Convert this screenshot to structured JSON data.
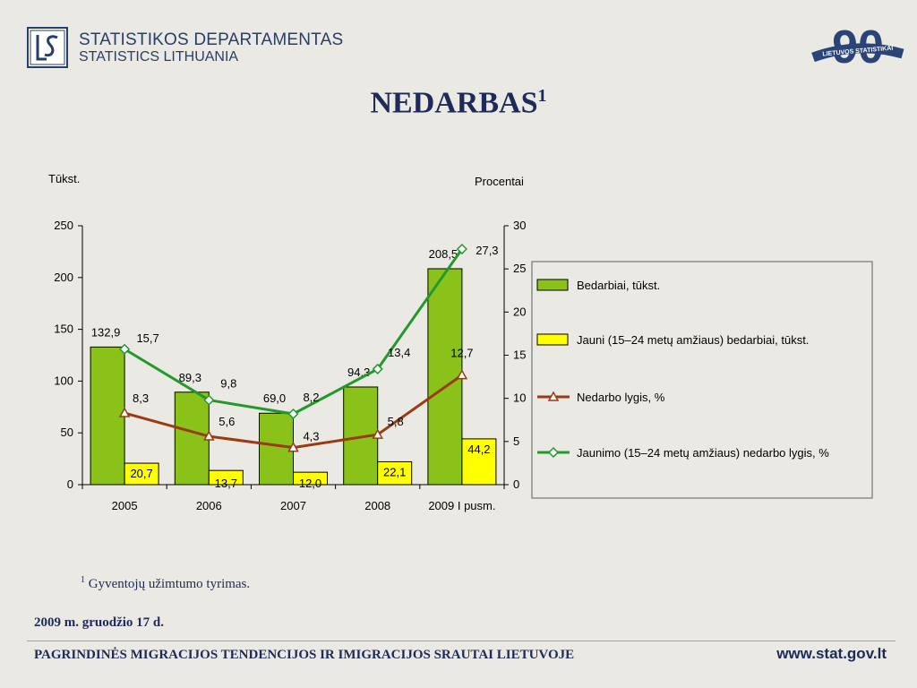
{
  "header": {
    "org_lt": "STATISTIKOS DEPARTAMENTAS",
    "org_en": "STATISTICS LITHUANIA",
    "anniversary_logo_text": "LIETUVOS STATISTIKAI",
    "anniversary_number": "90"
  },
  "title": {
    "text": "NEDARBAS",
    "footnote_mark": "1"
  },
  "footnote": {
    "mark": "1",
    "text": "Gyventojų užimtumo tyrimas."
  },
  "date": "2009 m. gruodžio 17 d.",
  "footer": {
    "title": "PAGRINDINĖS MIGRACIJOS TENDENCIJOS IR IMIGRACIJOS SRAUTAI LIETUVOJE",
    "site": "www.stat.gov.lt"
  },
  "colors": {
    "bar_total": "#8bc21a",
    "bar_youth": "#ffff00",
    "line_rate": "#9b3a12",
    "line_youth": "#209a2b",
    "text": "#1e2a58"
  },
  "chart_data": {
    "type": "bar",
    "categories": [
      "2005",
      "2006",
      "2007",
      "2008",
      "2009 I pusm."
    ],
    "left_axis": {
      "label": "Tūkst.",
      "ticks": [
        "0",
        "50",
        "100",
        "150",
        "200",
        "250"
      ],
      "range": [
        0,
        250
      ]
    },
    "right_axis": {
      "label": "Procentai",
      "ticks": [
        "0",
        "5",
        "10",
        "15",
        "20",
        "25",
        "30"
      ],
      "range": [
        0,
        30
      ]
    },
    "series": [
      {
        "name": "Bedarbiai, tūkst.",
        "kind": "bar",
        "axis": "left",
        "values": [
          132.9,
          89.3,
          69.0,
          94.3,
          208.5
        ],
        "labels": [
          "132,9",
          "89,3",
          "69,0",
          "94,3",
          "208,5"
        ]
      },
      {
        "name": "Jauni (15–24 metų amžiaus) bedarbiai, tūkst.",
        "kind": "bar",
        "axis": "left",
        "values": [
          20.7,
          13.7,
          12.0,
          22.1,
          44.2
        ],
        "labels": [
          "20,7",
          "13,7",
          "12,0",
          "22,1",
          "44,2"
        ]
      },
      {
        "name": "Nedarbo lygis, %",
        "kind": "line",
        "marker": "triangle",
        "axis": "right",
        "values": [
          8.3,
          5.6,
          4.3,
          5.8,
          12.7
        ],
        "labels": [
          "8,3",
          "5,6",
          "4,3",
          "5,8",
          "12,7"
        ]
      },
      {
        "name": "Jaunimo (15–24 metų amžiaus) nedarbo lygis, %",
        "kind": "line",
        "marker": "diamond",
        "axis": "right",
        "values": [
          15.7,
          9.8,
          8.2,
          13.4,
          27.3
        ],
        "labels": [
          "15,7",
          "9,8",
          "8,2",
          "13,4",
          "27,3"
        ]
      }
    ],
    "grid": false,
    "legend": "right"
  }
}
